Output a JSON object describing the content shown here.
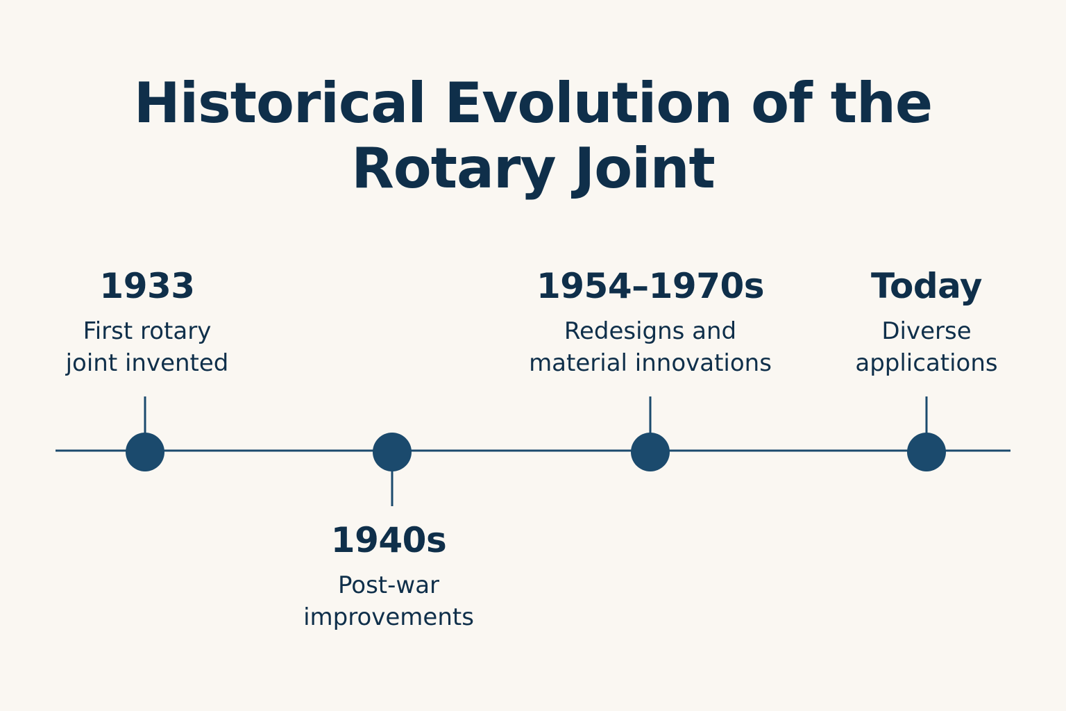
{
  "title": {
    "line1": "Historical Evolution of the",
    "line2": "Rotary Joint"
  },
  "colors": {
    "background": "#faf7f2",
    "text": "#0f2f4a",
    "line": "#1b4a6d",
    "node": "#1b4a6d"
  },
  "events": [
    {
      "year": "1933",
      "desc_line1": "First rotary",
      "desc_line2": "joint invented",
      "label_side": "above"
    },
    {
      "year": "1940s",
      "desc_line1": "Post-war",
      "desc_line2": "improvements",
      "label_side": "below"
    },
    {
      "year": "1954–1970s",
      "desc_line1": "Redesigns and",
      "desc_line2": "material innovations",
      "label_side": "above"
    },
    {
      "year": "Today",
      "desc_line1": "Diverse",
      "desc_line2": "applications",
      "label_side": "above"
    }
  ]
}
